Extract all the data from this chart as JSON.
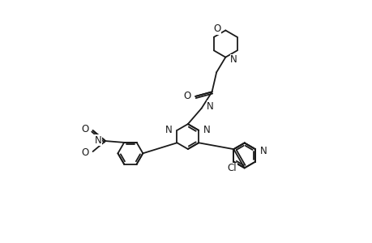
{
  "bg_color": "#ffffff",
  "line_color": "#1a1a1a",
  "lw": 1.3,
  "fs": 8.5,
  "xlim": [
    -1.0,
    9.5
  ],
  "ylim": [
    -0.5,
    7.5
  ],
  "figsize": [
    4.6,
    3.0
  ],
  "dpi": 100
}
